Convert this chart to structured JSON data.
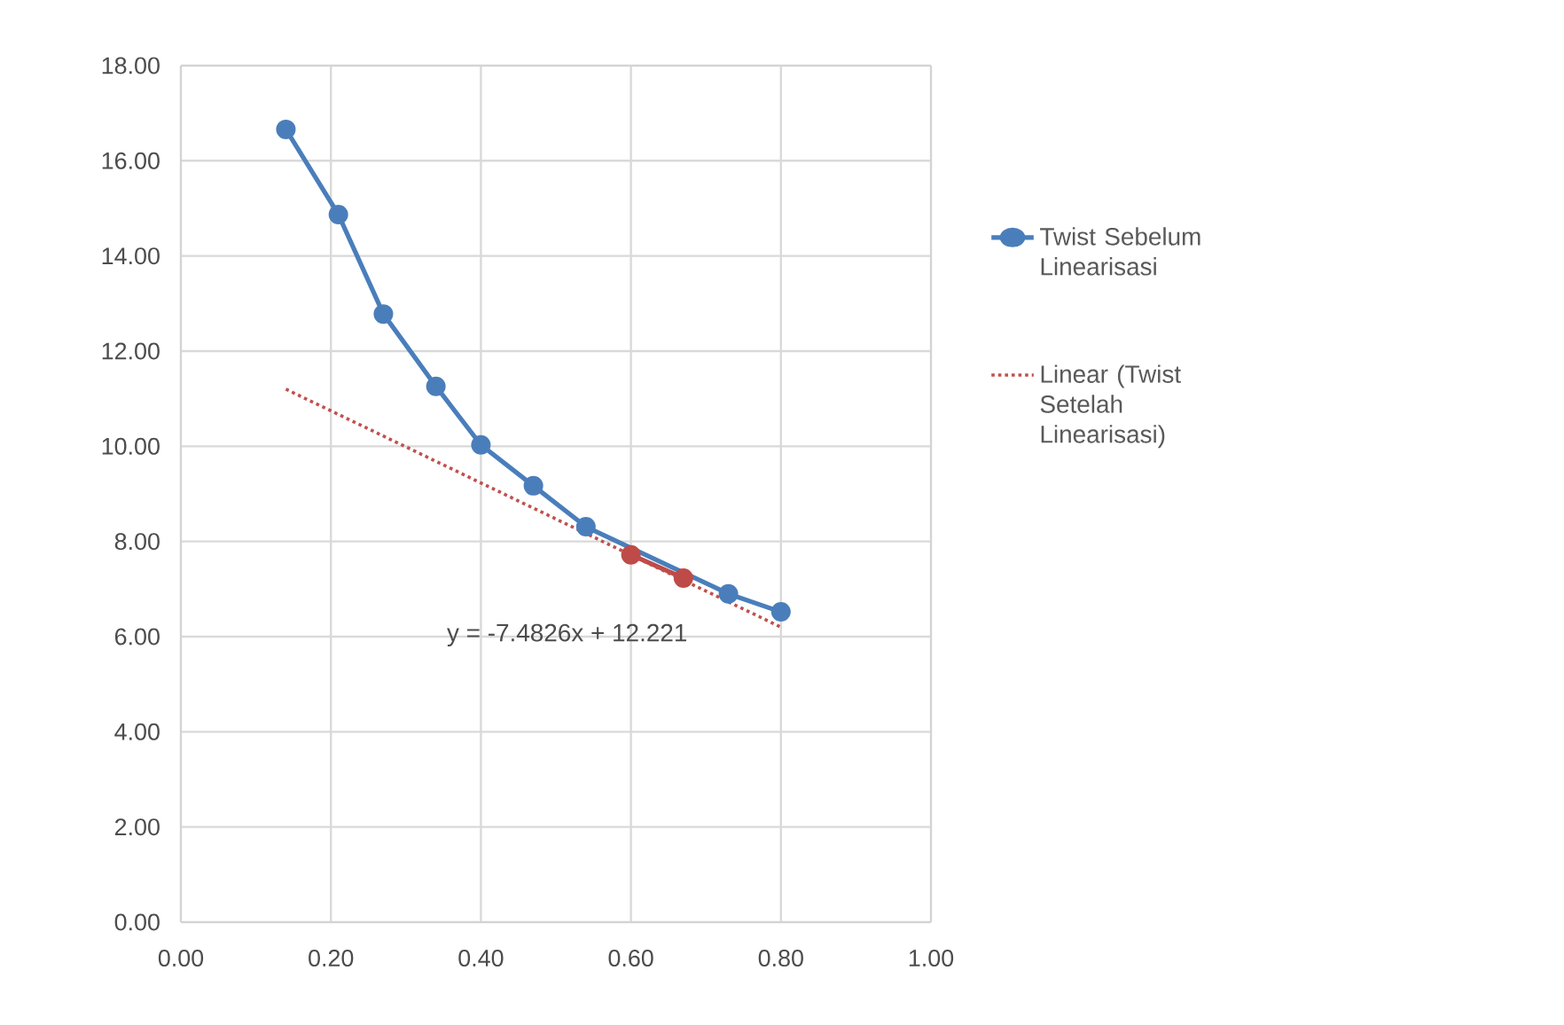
{
  "chart_data": {
    "type": "line",
    "series": [
      {
        "name": "Twist Sebelum Linearisasi",
        "color": "#4a7ebb",
        "marker": "circle",
        "line_style": "solid",
        "x": [
          0.14,
          0.21,
          0.27,
          0.34,
          0.4,
          0.47,
          0.54,
          0.6,
          0.67,
          0.73,
          0.8
        ],
        "values": [
          16.66,
          14.87,
          12.78,
          11.26,
          10.03,
          9.17,
          8.31,
          null,
          null,
          6.9,
          6.52
        ]
      },
      {
        "color": "#be4b48",
        "marker": "circle",
        "line_style": "solid",
        "x": [
          0.6,
          0.67
        ],
        "values": [
          7.72,
          7.23
        ]
      },
      {
        "name": "Linear (Twist Setelah Linearisasi)",
        "color": "#c0504d",
        "marker": "none",
        "line_style": "dotted",
        "x": [
          0.14,
          0.8
        ],
        "values": [
          11.2,
          6.2
        ]
      }
    ],
    "annotations": [
      "y = -7.4826x + 12.221"
    ],
    "xlim": [
      0,
      1
    ],
    "ylim": [
      0,
      18
    ],
    "xticks": [
      {
        "value": 0,
        "label": "0.00"
      },
      {
        "value": 0.2,
        "label": "0.20"
      },
      {
        "value": 0.4,
        "label": "0.40"
      },
      {
        "value": 0.6,
        "label": "0.60"
      },
      {
        "value": 0.8,
        "label": "0.80"
      },
      {
        "value": 1,
        "label": "1.00"
      }
    ],
    "yticks": [
      {
        "value": 0,
        "label": "0.00"
      },
      {
        "value": 2,
        "label": "2.00"
      },
      {
        "value": 4,
        "label": "4.00"
      },
      {
        "value": 6,
        "label": "6.00"
      },
      {
        "value": 8,
        "label": "8.00"
      },
      {
        "value": 10,
        "label": "10.00"
      },
      {
        "value": 12,
        "label": "12.00"
      },
      {
        "value": 14,
        "label": "14.00"
      },
      {
        "value": 16,
        "label": "16.00"
      },
      {
        "value": 18,
        "label": "18.00"
      }
    ],
    "grid": true,
    "legend": "right"
  }
}
